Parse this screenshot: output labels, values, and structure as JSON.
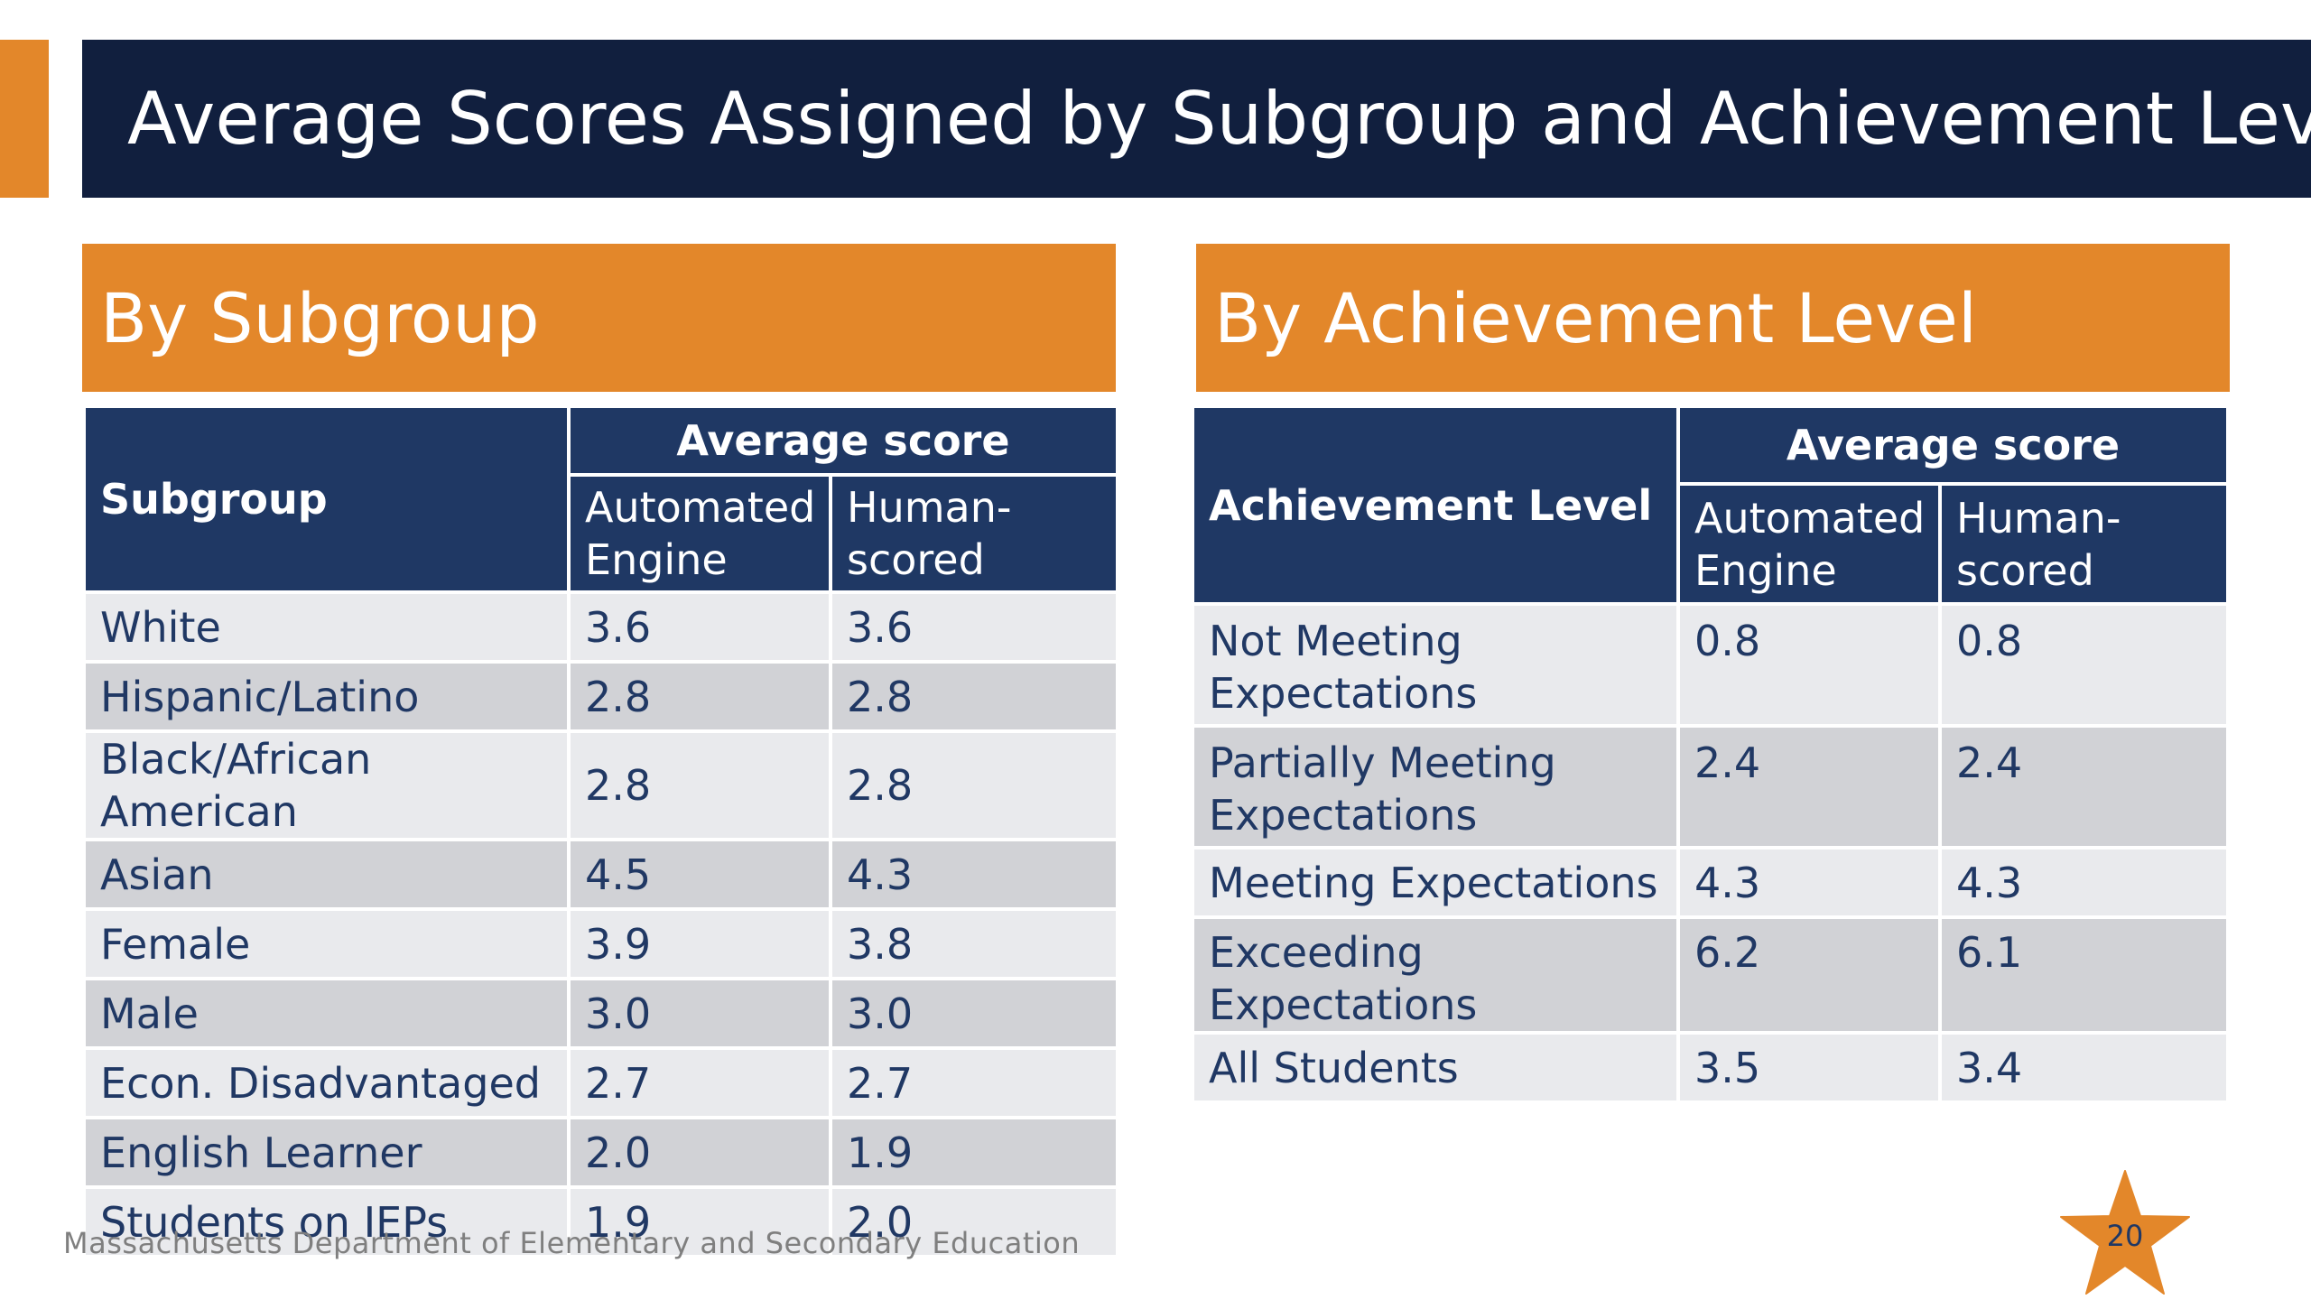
{
  "title": "Average Scores Assigned by Subgroup and Achievement Level",
  "left_section": {
    "header": "By Subgroup",
    "table": {
      "col_header": "Subgroup",
      "group_header": "Average score",
      "sub_headers": [
        "Automated Engine",
        "Human-scored"
      ],
      "rows": [
        {
          "label": "White",
          "automated": "3.6",
          "human": "3.6"
        },
        {
          "label": "Hispanic/Latino",
          "automated": "2.8",
          "human": "2.8"
        },
        {
          "label": "Black/African American",
          "automated": "2.8",
          "human": "2.8"
        },
        {
          "label": "Asian",
          "automated": "4.5",
          "human": "4.3"
        },
        {
          "label": "Female",
          "automated": "3.9",
          "human": "3.8"
        },
        {
          "label": "Male",
          "automated": "3.0",
          "human": "3.0"
        },
        {
          "label": "Econ. Disadvantaged",
          "automated": "2.7",
          "human": "2.7"
        },
        {
          "label": "English Learner",
          "automated": "2.0",
          "human": "1.9"
        },
        {
          "label": "Students on IEPs",
          "automated": "1.9",
          "human": "2.0"
        }
      ]
    }
  },
  "right_section": {
    "header": "By Achievement Level",
    "table": {
      "col_header": "Achievement Level",
      "group_header": "Average score",
      "sub_headers": [
        "Automated Engine",
        "Human-scored"
      ],
      "rows": [
        {
          "label": "Not Meeting Expectations",
          "automated": "0.8",
          "human": "0.8"
        },
        {
          "label": "Partially Meeting Expectations",
          "automated": "2.4",
          "human": "2.4"
        },
        {
          "label": "Meeting Expectations",
          "automated": "4.3",
          "human": "4.3"
        },
        {
          "label": "Exceeding Expectations",
          "automated": "6.2",
          "human": "6.1"
        },
        {
          "label": "All Students",
          "automated": "3.5",
          "human": "3.4"
        }
      ]
    }
  },
  "footer": "Massachusetts Department of Elementary and Secondary Education",
  "page_number": "20",
  "colors": {
    "title_bar": "#111F3E",
    "accent_orange": "#E3872A",
    "table_header": "#1F3864",
    "row_light": "#E9EAED",
    "row_dark": "#D1D2D6",
    "text_navy": "#203864",
    "star": "#E3872A"
  },
  "icons": {
    "page_badge": "star-icon"
  }
}
